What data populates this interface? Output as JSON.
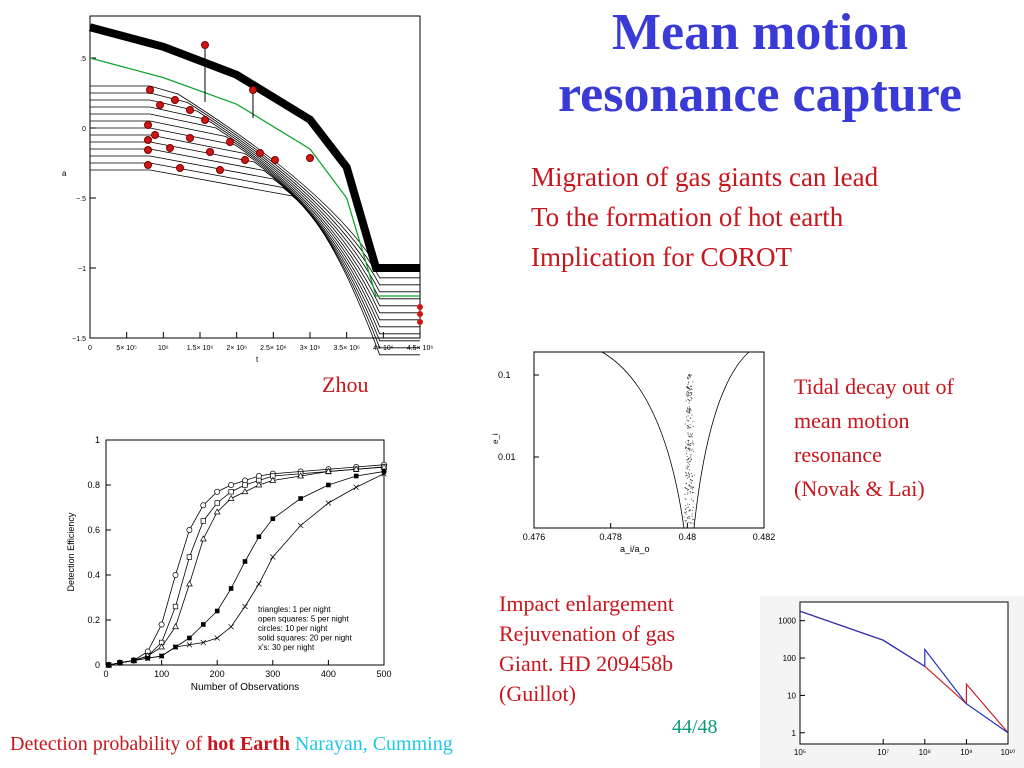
{
  "slide": {
    "title_line1": "Mean motion",
    "title_line2": "resonance capture",
    "bullets": [
      "Migration of gas giants can lead",
      "To the formation of hot earth",
      "Implication for COROT"
    ],
    "zhou_label": "Zhou",
    "tidal_caption": [
      "Tidal decay out of",
      "mean motion",
      "resonance",
      "(Novak & Lai)"
    ],
    "impact_caption": [
      "Impact enlargement",
      "Rejuvenation of gas",
      "Giant.  HD 209458b",
      "(Guillot)"
    ],
    "page_number": "44/48",
    "footer": {
      "prefix": "Detection probability of ",
      "bold": "hot Earth",
      "authors": " Narayan, Cumming"
    },
    "colors": {
      "title": "#3a3ad6",
      "text": "#c8161d",
      "page_number": "#0a9a7a",
      "authors": "#1ec8e6"
    }
  },
  "chart_data": [
    {
      "type": "line",
      "xlabel": "t",
      "ylabel": "a",
      "xlim": [
        0,
        4500000
      ],
      "ylim": [
        -1.5,
        0.8
      ],
      "x_tick_labels": [
        "0",
        "5× 10⁵",
        "10⁶",
        "1.5× 10⁶",
        "2× 10⁶",
        "2.5× 10⁶",
        "3× 10⁶",
        "3.5× 10⁶",
        "4× 10⁶",
        "4.5× 10⁶"
      ],
      "y_tick_labels": [
        ".5",
        "0",
        "−.5",
        "−1",
        "−1.5"
      ],
      "y_ticks": [
        0.5,
        0,
        -0.5,
        -1,
        -1.5
      ],
      "series": [
        {
          "name": "",
          "color": "#000000",
          "x": [
            0,
            1000000,
            2000000,
            3000000,
            3500000,
            3900000,
            4500000
          ],
          "y": [
            0.72,
            0.58,
            0.38,
            0.06,
            -0.28,
            -1.0,
            -1.0
          ]
        },
        {
          "name": "",
          "color": "#11a52c",
          "x": [
            0,
            1000000,
            2000000,
            3000000,
            3500000,
            3900000,
            4500000
          ],
          "y": [
            0.5,
            0.36,
            0.17,
            -0.15,
            -0.5,
            -1.2,
            -1.2
          ]
        }
      ]
    },
    {
      "type": "line",
      "xlabel": "Number of Observations",
      "ylabel": "Detection Efficiency",
      "xlim": [
        0,
        500
      ],
      "ylim": [
        0,
        1
      ],
      "x_ticks": [
        0,
        100,
        200,
        300,
        400,
        500
      ],
      "y_ticks": [
        0,
        0.2,
        0.4,
        0.6,
        0.8,
        1
      ],
      "x_tick_labels": [
        "0",
        "100",
        "200",
        "300",
        "400",
        "500"
      ],
      "y_tick_labels": [
        "0",
        "0.2",
        "0.4",
        "0.6",
        "0.8",
        "1"
      ],
      "legend": [
        "triangles: 1 per night",
        "open squares: 5 per night",
        "circles: 10 per night",
        "solid squares: 20 per night",
        "x's: 30 per night"
      ],
      "legend_position": "bottom-right",
      "x": [
        5,
        25,
        50,
        75,
        100,
        125,
        150,
        175,
        200,
        225,
        250,
        275,
        300,
        350,
        400,
        450,
        500
      ],
      "series": [
        {
          "name": "circles",
          "values": [
            0,
            0.01,
            0.02,
            0.06,
            0.18,
            0.4,
            0.6,
            0.71,
            0.77,
            0.8,
            0.82,
            0.84,
            0.85,
            0.86,
            0.87,
            0.88,
            0.89
          ]
        },
        {
          "name": "open squares",
          "values": [
            0,
            0.01,
            0.02,
            0.04,
            0.1,
            0.26,
            0.48,
            0.64,
            0.72,
            0.77,
            0.8,
            0.82,
            0.84,
            0.85,
            0.86,
            0.87,
            0.88
          ]
        },
        {
          "name": "triangles",
          "values": [
            0,
            0.01,
            0.02,
            0.04,
            0.08,
            0.17,
            0.36,
            0.56,
            0.68,
            0.74,
            0.77,
            0.8,
            0.82,
            0.84,
            0.86,
            0.87,
            0.88
          ]
        },
        {
          "name": "solid squares",
          "values": [
            0,
            0.01,
            0.02,
            0.03,
            0.04,
            0.08,
            0.12,
            0.18,
            0.24,
            0.34,
            0.46,
            0.57,
            0.65,
            0.74,
            0.8,
            0.84,
            0.86
          ]
        },
        {
          "name": "x's",
          "values": [
            0,
            0.01,
            0.02,
            0.03,
            0.04,
            0.08,
            0.09,
            0.1,
            0.12,
            0.17,
            0.26,
            0.36,
            0.48,
            0.62,
            0.72,
            0.79,
            0.85
          ]
        }
      ]
    },
    {
      "type": "line",
      "xlabel": "a_i/a_o",
      "ylabel": "e_i",
      "xlim": [
        0.476,
        0.482
      ],
      "x_ticks": [
        0.476,
        0.478,
        0.48,
        0.482
      ],
      "x_tick_labels": [
        "0.476",
        "0.478",
        "0.48",
        "0.482"
      ],
      "y_scale": "log",
      "y_tick_labels": [
        "0.1",
        "0.01"
      ]
    },
    {
      "type": "line",
      "xscale": "log",
      "yscale": "log",
      "x_tick_labels": [
        "10⁵",
        "10⁷",
        "10⁸",
        "10⁹",
        "10¹⁰"
      ],
      "y_tick_labels": [
        "1000",
        "100",
        "10",
        "1"
      ],
      "series": [
        {
          "name": "",
          "color": "#cc2222",
          "x": [
            100000,
            10000000,
            100000000,
            1000000000,
            1000000000,
            10000000000
          ],
          "y": [
            1800,
            300,
            60,
            6,
            20,
            1
          ]
        },
        {
          "name": "",
          "color": "#2233bb",
          "x": [
            100000,
            10000000,
            100000000,
            100000000,
            1000000000,
            10000000000
          ],
          "y": [
            1800,
            300,
            60,
            170,
            6,
            1
          ]
        }
      ]
    }
  ]
}
